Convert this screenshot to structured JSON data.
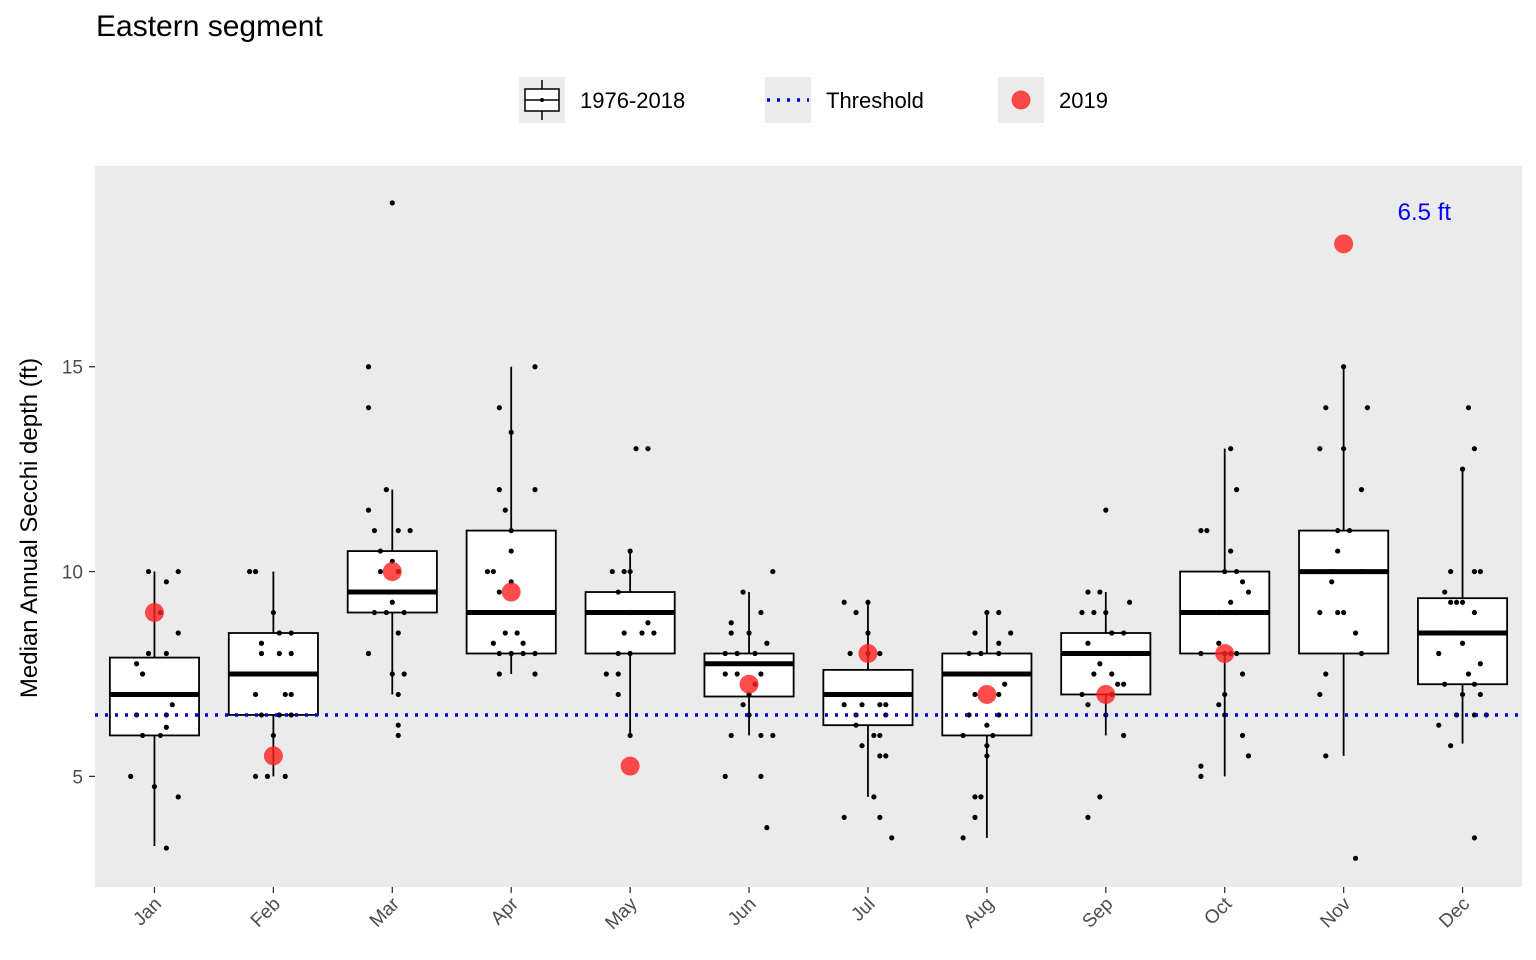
{
  "chart_data": {
    "type": "box",
    "title": "Eastern segment",
    "ylabel": "Median Annual Secchi depth (ft)",
    "xlabel": "",
    "ylim": [
      2.3,
      19.9
    ],
    "yticks": [
      5,
      10,
      15
    ],
    "grid": false,
    "legend_position": "top",
    "legend": [
      {
        "key": "box",
        "label": "1976-2018"
      },
      {
        "key": "threshold",
        "label": "Threshold"
      },
      {
        "key": "current",
        "label": "2019"
      }
    ],
    "categories": [
      "Jan",
      "Feb",
      "Mar",
      "Apr",
      "May",
      "Jun",
      "Jul",
      "Aug",
      "Sep",
      "Oct",
      "Nov",
      "Dec"
    ],
    "boxes": [
      {
        "q1": 6.0,
        "median": 7.0,
        "q3": 7.9,
        "whisker_low": 3.3,
        "whisker_high": 10.0
      },
      {
        "q1": 6.5,
        "median": 7.5,
        "q3": 8.5,
        "whisker_low": 5.0,
        "whisker_high": 10.0
      },
      {
        "q1": 9.0,
        "median": 9.5,
        "q3": 10.5,
        "whisker_low": 7.0,
        "whisker_high": 12.0
      },
      {
        "q1": 8.0,
        "median": 9.0,
        "q3": 11.0,
        "whisker_low": 7.5,
        "whisker_high": 15.0
      },
      {
        "q1": 8.0,
        "median": 9.0,
        "q3": 9.5,
        "whisker_low": 6.0,
        "whisker_high": 10.5
      },
      {
        "q1": 6.95,
        "median": 7.75,
        "q3": 8.0,
        "whisker_low": 6.0,
        "whisker_high": 9.5
      },
      {
        "q1": 6.25,
        "median": 7.0,
        "q3": 7.6,
        "whisker_low": 4.5,
        "whisker_high": 9.25
      },
      {
        "q1": 6.0,
        "median": 7.5,
        "q3": 8.0,
        "whisker_low": 3.5,
        "whisker_high": 9.0
      },
      {
        "q1": 7.0,
        "median": 8.0,
        "q3": 8.5,
        "whisker_low": 6.0,
        "whisker_high": 9.5
      },
      {
        "q1": 8.0,
        "median": 9.0,
        "q3": 10.0,
        "whisker_low": 5.0,
        "whisker_high": 13.0
      },
      {
        "q1": 8.0,
        "median": 10.0,
        "q3": 11.0,
        "whisker_low": 5.5,
        "whisker_high": 15.0
      },
      {
        "q1": 7.25,
        "median": 8.5,
        "q3": 9.35,
        "whisker_low": 5.8,
        "whisker_high": 12.5
      }
    ],
    "points": [
      [
        [
          -0.2,
          5.0
        ],
        [
          0.1,
          3.25
        ],
        [
          0.0,
          4.75
        ],
        [
          0.2,
          4.5
        ],
        [
          -0.1,
          6.0
        ],
        [
          0.05,
          6.0
        ],
        [
          0.1,
          6.2
        ],
        [
          -0.15,
          6.5
        ],
        [
          0.1,
          6.5
        ],
        [
          -0.1,
          7.0
        ],
        [
          0.15,
          6.75
        ],
        [
          -0.1,
          7.5
        ],
        [
          -0.15,
          7.75
        ],
        [
          0.1,
          8.0
        ],
        [
          -0.05,
          8.0
        ],
        [
          0.2,
          8.5
        ],
        [
          0.05,
          9.0
        ],
        [
          -0.05,
          10.0
        ],
        [
          0.1,
          9.75
        ],
        [
          0.2,
          10.0
        ]
      ],
      [
        [
          -0.15,
          5.0
        ],
        [
          -0.05,
          5.0
        ],
        [
          0.1,
          5.0
        ],
        [
          0.0,
          6.0
        ],
        [
          0.05,
          6.5
        ],
        [
          0.15,
          6.5
        ],
        [
          -0.1,
          6.5
        ],
        [
          -0.15,
          7.0
        ],
        [
          0.1,
          7.0
        ],
        [
          0.15,
          7.0
        ],
        [
          -0.1,
          8.0
        ],
        [
          0.15,
          8.0
        ],
        [
          0.05,
          8.0
        ],
        [
          -0.1,
          8.25
        ],
        [
          0.0,
          9.0
        ],
        [
          0.05,
          8.5
        ],
        [
          0.15,
          8.5
        ],
        [
          -0.2,
          10.0
        ],
        [
          -0.15,
          10.0
        ]
      ],
      [
        [
          0.0,
          19.0
        ],
        [
          -0.2,
          15.0
        ],
        [
          -0.2,
          14.0
        ],
        [
          -0.05,
          12.0
        ],
        [
          -0.2,
          11.5
        ],
        [
          -0.15,
          11.0
        ],
        [
          0.05,
          11.0
        ],
        [
          0.15,
          11.0
        ],
        [
          -0.1,
          10.0
        ],
        [
          0.05,
          10.0
        ],
        [
          -0.15,
          9.0
        ],
        [
          -0.05,
          9.0
        ],
        [
          0.0,
          9.25
        ],
        [
          0.1,
          9.0
        ],
        [
          0.2,
          9.5
        ],
        [
          -0.1,
          10.5
        ],
        [
          0.0,
          10.25
        ],
        [
          0.05,
          8.5
        ],
        [
          -0.2,
          8.0
        ],
        [
          0.0,
          7.5
        ],
        [
          0.1,
          7.5
        ],
        [
          0.05,
          7.0
        ],
        [
          0.05,
          6.25
        ],
        [
          0.05,
          6.0
        ]
      ],
      [
        [
          0.2,
          15.0
        ],
        [
          -0.1,
          14.0
        ],
        [
          0.0,
          13.4
        ],
        [
          -0.1,
          12.0
        ],
        [
          0.2,
          12.0
        ],
        [
          -0.05,
          11.5
        ],
        [
          0.0,
          11.0
        ],
        [
          -0.2,
          10.0
        ],
        [
          -0.15,
          10.0
        ],
        [
          0.0,
          10.5
        ],
        [
          0.0,
          9.75
        ],
        [
          -0.1,
          9.5
        ],
        [
          -0.05,
          8.5
        ],
        [
          0.05,
          8.5
        ],
        [
          -0.15,
          8.25
        ],
        [
          0.1,
          8.25
        ],
        [
          -0.1,
          8.0
        ],
        [
          0.0,
          8.0
        ],
        [
          0.1,
          8.0
        ],
        [
          0.2,
          8.0
        ],
        [
          -0.1,
          7.5
        ],
        [
          0.2,
          7.5
        ]
      ],
      [
        [
          0.05,
          13.0
        ],
        [
          0.15,
          13.0
        ],
        [
          0.0,
          10.5
        ],
        [
          -0.05,
          10.0
        ],
        [
          -0.15,
          10.0
        ],
        [
          0.0,
          10.0
        ],
        [
          -0.1,
          9.5
        ],
        [
          0.0,
          9.0
        ],
        [
          0.15,
          8.75
        ],
        [
          -0.05,
          8.5
        ],
        [
          0.1,
          8.5
        ],
        [
          0.2,
          8.5
        ],
        [
          -0.1,
          8.0
        ],
        [
          0.0,
          8.0
        ],
        [
          -0.2,
          7.5
        ],
        [
          -0.1,
          7.5
        ],
        [
          -0.1,
          7.0
        ],
        [
          0.0,
          6.0
        ]
      ],
      [
        [
          0.2,
          10.0
        ],
        [
          -0.05,
          9.5
        ],
        [
          0.1,
          9.0
        ],
        [
          -0.15,
          8.75
        ],
        [
          -0.15,
          8.5
        ],
        [
          0.0,
          8.5
        ],
        [
          0.15,
          8.25
        ],
        [
          -0.2,
          8.0
        ],
        [
          -0.1,
          8.0
        ],
        [
          0.05,
          8.0
        ],
        [
          -0.2,
          7.5
        ],
        [
          -0.1,
          7.5
        ],
        [
          0.1,
          7.5
        ],
        [
          0.05,
          7.25
        ],
        [
          0.0,
          7.0
        ],
        [
          -0.05,
          6.75
        ],
        [
          0.0,
          6.5
        ],
        [
          -0.15,
          6.0
        ],
        [
          0.1,
          6.0
        ],
        [
          0.2,
          6.0
        ],
        [
          -0.2,
          5.0
        ],
        [
          0.1,
          5.0
        ],
        [
          0.15,
          3.75
        ]
      ],
      [
        [
          -0.2,
          9.25
        ],
        [
          0.0,
          9.25
        ],
        [
          -0.1,
          9.0
        ],
        [
          0.0,
          8.5
        ],
        [
          -0.15,
          8.0
        ],
        [
          0.0,
          8.0
        ],
        [
          0.1,
          8.0
        ],
        [
          -0.2,
          6.75
        ],
        [
          -0.05,
          6.75
        ],
        [
          0.1,
          6.75
        ],
        [
          0.15,
          6.75
        ],
        [
          -0.1,
          6.5
        ],
        [
          0.15,
          6.5
        ],
        [
          -0.1,
          6.25
        ],
        [
          0.05,
          6.0
        ],
        [
          0.1,
          6.0
        ],
        [
          -0.05,
          5.75
        ],
        [
          0.1,
          5.5
        ],
        [
          0.15,
          5.5
        ],
        [
          0.05,
          4.5
        ],
        [
          -0.2,
          4.0
        ],
        [
          0.1,
          4.0
        ],
        [
          0.2,
          3.5
        ]
      ],
      [
        [
          0.0,
          9.0
        ],
        [
          0.1,
          9.0
        ],
        [
          0.2,
          8.5
        ],
        [
          -0.1,
          8.5
        ],
        [
          0.1,
          8.25
        ],
        [
          -0.15,
          8.0
        ],
        [
          -0.05,
          8.0
        ],
        [
          0.1,
          8.0
        ],
        [
          0.0,
          7.5
        ],
        [
          0.15,
          7.25
        ],
        [
          -0.1,
          7.0
        ],
        [
          0.1,
          7.0
        ],
        [
          -0.15,
          6.5
        ],
        [
          0.0,
          6.25
        ],
        [
          0.1,
          6.5
        ],
        [
          -0.2,
          6.0
        ],
        [
          0.05,
          6.0
        ],
        [
          0.0,
          5.75
        ],
        [
          0.0,
          5.5
        ],
        [
          -0.1,
          4.5
        ],
        [
          -0.05,
          4.5
        ],
        [
          -0.1,
          4.0
        ],
        [
          -0.2,
          3.5
        ]
      ],
      [
        [
          0.0,
          11.5
        ],
        [
          -0.15,
          9.5
        ],
        [
          -0.05,
          9.5
        ],
        [
          0.2,
          9.25
        ],
        [
          -0.2,
          9.0
        ],
        [
          -0.1,
          9.0
        ],
        [
          0.0,
          9.0
        ],
        [
          0.05,
          8.5
        ],
        [
          0.15,
          8.5
        ],
        [
          -0.15,
          8.25
        ],
        [
          0.1,
          8.0
        ],
        [
          0.2,
          8.0
        ],
        [
          -0.05,
          7.75
        ],
        [
          -0.1,
          7.5
        ],
        [
          0.05,
          7.5
        ],
        [
          0.1,
          7.25
        ],
        [
          0.15,
          7.25
        ],
        [
          -0.2,
          7.0
        ],
        [
          0.05,
          7.0
        ],
        [
          -0.15,
          6.75
        ],
        [
          0.0,
          6.5
        ],
        [
          0.15,
          6.0
        ],
        [
          -0.05,
          4.5
        ],
        [
          -0.15,
          4.0
        ]
      ],
      [
        [
          0.05,
          13.0
        ],
        [
          0.1,
          12.0
        ],
        [
          -0.2,
          11.0
        ],
        [
          -0.15,
          11.0
        ],
        [
          0.05,
          10.5
        ],
        [
          0.0,
          10.0
        ],
        [
          0.1,
          10.0
        ],
        [
          0.15,
          9.75
        ],
        [
          0.2,
          9.5
        ],
        [
          0.05,
          9.25
        ],
        [
          -0.05,
          9.0
        ],
        [
          0.1,
          9.0
        ],
        [
          -0.2,
          8.0
        ],
        [
          -0.05,
          8.25
        ],
        [
          0.0,
          8.0
        ],
        [
          0.05,
          8.0
        ],
        [
          0.1,
          8.0
        ],
        [
          0.15,
          7.5
        ],
        [
          0.0,
          7.0
        ],
        [
          -0.05,
          6.75
        ],
        [
          0.0,
          6.5
        ],
        [
          0.15,
          6.0
        ],
        [
          0.2,
          5.5
        ],
        [
          -0.2,
          5.25
        ],
        [
          -0.2,
          5.0
        ]
      ],
      [
        [
          0.0,
          15.0
        ],
        [
          0.2,
          14.0
        ],
        [
          -0.15,
          14.0
        ],
        [
          -0.2,
          13.0
        ],
        [
          0.0,
          13.0
        ],
        [
          0.15,
          12.0
        ],
        [
          -0.05,
          11.0
        ],
        [
          0.05,
          11.0
        ],
        [
          0.15,
          10.0
        ],
        [
          -0.05,
          10.5
        ],
        [
          -0.1,
          10.0
        ],
        [
          -0.1,
          9.75
        ],
        [
          0.0,
          9.0
        ],
        [
          -0.05,
          9.0
        ],
        [
          -0.2,
          9.0
        ],
        [
          0.1,
          8.5
        ],
        [
          0.15,
          8.0
        ],
        [
          -0.15,
          7.5
        ],
        [
          -0.2,
          7.0
        ],
        [
          -0.15,
          5.5
        ],
        [
          0.1,
          3.0
        ]
      ],
      [
        [
          0.05,
          14.0
        ],
        [
          0.1,
          13.0
        ],
        [
          0.0,
          12.5
        ],
        [
          0.15,
          10.0
        ],
        [
          -0.1,
          10.0
        ],
        [
          0.1,
          10.0
        ],
        [
          -0.15,
          9.5
        ],
        [
          -0.05,
          9.25
        ],
        [
          -0.1,
          9.25
        ],
        [
          0.0,
          9.25
        ],
        [
          0.1,
          9.0
        ],
        [
          -0.1,
          8.5
        ],
        [
          0.0,
          8.25
        ],
        [
          -0.2,
          8.0
        ],
        [
          0.15,
          7.75
        ],
        [
          0.05,
          7.5
        ],
        [
          -0.15,
          7.25
        ],
        [
          0.1,
          7.25
        ],
        [
          0.0,
          7.0
        ],
        [
          0.15,
          7.0
        ],
        [
          -0.05,
          6.5
        ],
        [
          0.1,
          6.5
        ],
        [
          0.2,
          6.5
        ],
        [
          -0.2,
          6.25
        ],
        [
          -0.1,
          5.75
        ],
        [
          0.1,
          3.5
        ]
      ]
    ],
    "current_year": [
      9.0,
      5.5,
      10.0,
      9.5,
      5.25,
      7.25,
      8.0,
      7.0,
      7.0,
      8.0,
      18.0,
      null
    ],
    "threshold": 6.5,
    "threshold_label": "6.5 ft",
    "colors": {
      "panel": "#ebebeb",
      "box_fill": "#ffffff",
      "box_line": "#000000",
      "threshold": "#0000cc",
      "current": "#ff2020",
      "annotation": "#0000ff"
    }
  }
}
